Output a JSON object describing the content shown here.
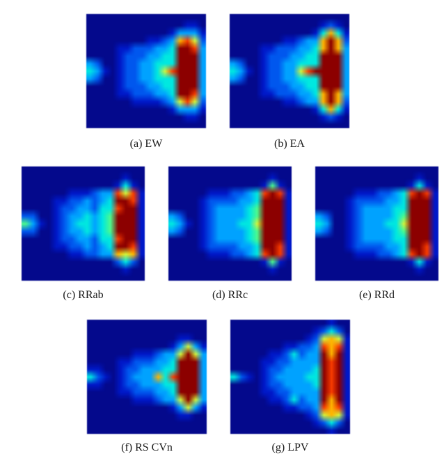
{
  "figure": {
    "background": "#ffffff",
    "caption_color": "#1a1a1a",
    "palette": [
      "#04098c",
      "#0018c8",
      "#0057ee",
      "#00a2ff",
      "#00e8e0",
      "#4cfa8e",
      "#d2f53c",
      "#ffb400",
      "#f83c00",
      "#8c0000"
    ],
    "colormap_name": "jet",
    "rows": [
      {
        "panels": [
          {
            "id": "a",
            "label": "(a) EW",
            "grid": [
              "0000000000000000",
              "0000000000000110",
              "0000000000013331",
              "0000000011237862",
              "0000112223349983",
              "0000122233449993",
              "3200122334449993",
              "4310122334689993",
              "3200122334449993",
              "0000122233449993",
              "0000112223349983",
              "0000001111236862",
              "0000000000013331",
              "0000000000000110",
              "0000000000000000"
            ]
          },
          {
            "id": "b",
            "label": "(b) EA",
            "grid": [
              "0000000000000000",
              "0000000000001210",
              "0000000000014741",
              "0000000112337972",
              "0000112223347973",
              "0000122233449993",
              "3200122334449993",
              "4310122336899993",
              "3200122334449993",
              "0000122233449993",
              "0000112223347973",
              "0000000112337972",
              "0000000000014741",
              "0000000000001210",
              "0000000000000000"
            ]
          }
        ]
      },
      {
        "panels": [
          {
            "id": "c",
            "label": "(c) RRab",
            "grid": [
              "0000000000000000",
              "0000000000000100",
              "0000000000001410",
              "0000001112338681",
              "0000112232349981",
              "0000122332448991",
              "2200123343459991",
              "5310123443459991",
              "2200123343459991",
              "0000122332448991",
              "0000112232349981",
              "0000001122337671",
              "0000000000002420",
              "0000000000000100",
              "0000000000000000"
            ]
          },
          {
            "id": "d",
            "label": "(d) RRc",
            "grid": [
              "0000000000000000",
              "0000000000000100",
              "0000000000001510",
              "0000011122348981",
              "0000122223349991",
              "0000123333459991",
              "3200123333459991",
              "4310123334469991",
              "3200123333459991",
              "0000123333459991",
              "0000122223349981",
              "0000011122348981",
              "0000000000001510",
              "0000000000000100",
              "0000000000000000"
            ]
          },
          {
            "id": "e",
            "label": "(e) RRd",
            "grid": [
              "0000000000000000",
              "0000000000000100",
              "0000000000001410",
              "0000011122348981",
              "0000122223349991",
              "0000123333449991",
              "3200123333459991",
              "4300123334469991",
              "3200123333459991",
              "0000123333449991",
              "0000122223349981",
              "0000011122348981",
              "0000000000001410",
              "0000000000000100",
              "0000000000000000"
            ]
          }
        ]
      },
      {
        "panels": [
          {
            "id": "f",
            "label": "(f) RS CVn",
            "grid": [
              "0000000000000000",
              "0000000000000000",
              "0000000000001100",
              "0000000000013631",
              "0000001112336963",
              "0000112223349993",
              "1100122333449993",
              "4210123337489993",
              "1100122333449993",
              "0000112223349993",
              "0000001112336963",
              "0000000000013631",
              "0000000000001100",
              "0000000000000000",
              "0000000000000000"
            ]
          },
          {
            "id": "g",
            "label": "(g) LPV",
            "grid": [
              "0000000000000100",
              "0000000000012420",
              "0000000000126761",
              "0000000112238781",
              "0000011242339791",
              "0000112233339891",
              "0000122333349891",
              "4210123333449891",
              "0000122333349891",
              "0000112233339891",
              "0000011242339791",
              "0000000112238781",
              "0000000000126761",
              "0000000000012420",
              "0000000000000100"
            ]
          }
        ]
      }
    ]
  }
}
